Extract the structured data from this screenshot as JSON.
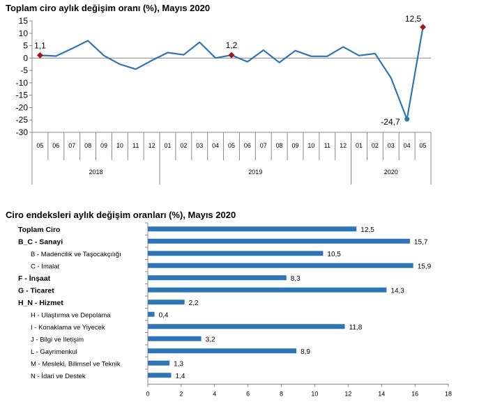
{
  "chart_data": [
    {
      "type": "line",
      "title": "Toplam ciro aylık değişim oranı (%), Mayıs 2020",
      "ylim": [
        -30,
        15
      ],
      "yticks": [
        15,
        10,
        5,
        0,
        -5,
        -10,
        -15,
        -20,
        -25,
        -30
      ],
      "x": [
        "05",
        "06",
        "07",
        "08",
        "09",
        "10",
        "11",
        "12",
        "01",
        "02",
        "03",
        "04",
        "05",
        "06",
        "07",
        "08",
        "09",
        "10",
        "11",
        "12",
        "01",
        "02",
        "03",
        "04",
        "05"
      ],
      "year_groups": [
        {
          "label": "2018",
          "count": 8
        },
        {
          "label": "2019",
          "count": 12
        },
        {
          "label": "2020",
          "count": 5
        }
      ],
      "series": [
        {
          "values": [
            1.1,
            0.8,
            3.8,
            7.0,
            1.0,
            -2.5,
            -4.5,
            -1.0,
            2.2,
            1.3,
            6.4,
            0.0,
            1.2,
            -1.5,
            3.2,
            -1.8,
            3.0,
            0.7,
            0.7,
            4.5,
            1.0,
            1.8,
            -8.0,
            -24.7,
            12.5
          ],
          "color": "#2e75b6"
        }
      ],
      "highlights": [
        {
          "index": 0,
          "label": "1,1"
        },
        {
          "index": 12,
          "label": "1,2"
        },
        {
          "index": 24,
          "label": "12,5"
        }
      ],
      "annotations": [
        {
          "index": 23,
          "label": "-24,7"
        }
      ],
      "marker_color": "#9b1c1c",
      "grid": false
    },
    {
      "type": "bar",
      "orientation": "horizontal",
      "title": "Ciro endeksleri aylık değişim oranları (%), Mayıs 2020",
      "categories": [
        {
          "label": "Toplam Ciro",
          "bold": true,
          "indent": 0
        },
        {
          "label": "B_C - Sanayi",
          "bold": true,
          "indent": 0
        },
        {
          "label": "B - Madencilik ve Taşocakçılığı",
          "bold": false,
          "indent": 1
        },
        {
          "label": "C - İmalat",
          "bold": false,
          "indent": 1
        },
        {
          "label": "F - İnşaat",
          "bold": true,
          "indent": 0
        },
        {
          "label": "G - Ticaret",
          "bold": true,
          "indent": 0
        },
        {
          "label": "H_N - Hizmet",
          "bold": true,
          "indent": 0
        },
        {
          "label": "H - Ulaştırma ve Depolama",
          "bold": false,
          "indent": 1
        },
        {
          "label": "I - Konaklama ve Yiyecek",
          "bold": false,
          "indent": 1
        },
        {
          "label": "J - Bilgi ve İletişim",
          "bold": false,
          "indent": 1
        },
        {
          "label": "L - Gayrimenkul",
          "bold": false,
          "indent": 1
        },
        {
          "label": "M - Mesleki, Bilimsel ve Teknik",
          "bold": false,
          "indent": 1
        },
        {
          "label": "N - İdari ve Destek",
          "bold": false,
          "indent": 1
        }
      ],
      "values": [
        12.5,
        15.7,
        10.5,
        15.9,
        8.3,
        14.3,
        2.2,
        0.4,
        11.8,
        3.2,
        8.9,
        1.3,
        1.4
      ],
      "value_labels": [
        "12,5",
        "15,7",
        "10,5",
        "15,9",
        "8,3",
        "14,3",
        "2,2",
        "0,4",
        "11,8",
        "3,2",
        "8,9",
        "1,3",
        "1,4"
      ],
      "xlim": [
        0,
        18
      ],
      "xticks": [
        0,
        2,
        4,
        6,
        8,
        10,
        12,
        14,
        16,
        18
      ],
      "color": "#2e75b6",
      "grid": false
    }
  ]
}
